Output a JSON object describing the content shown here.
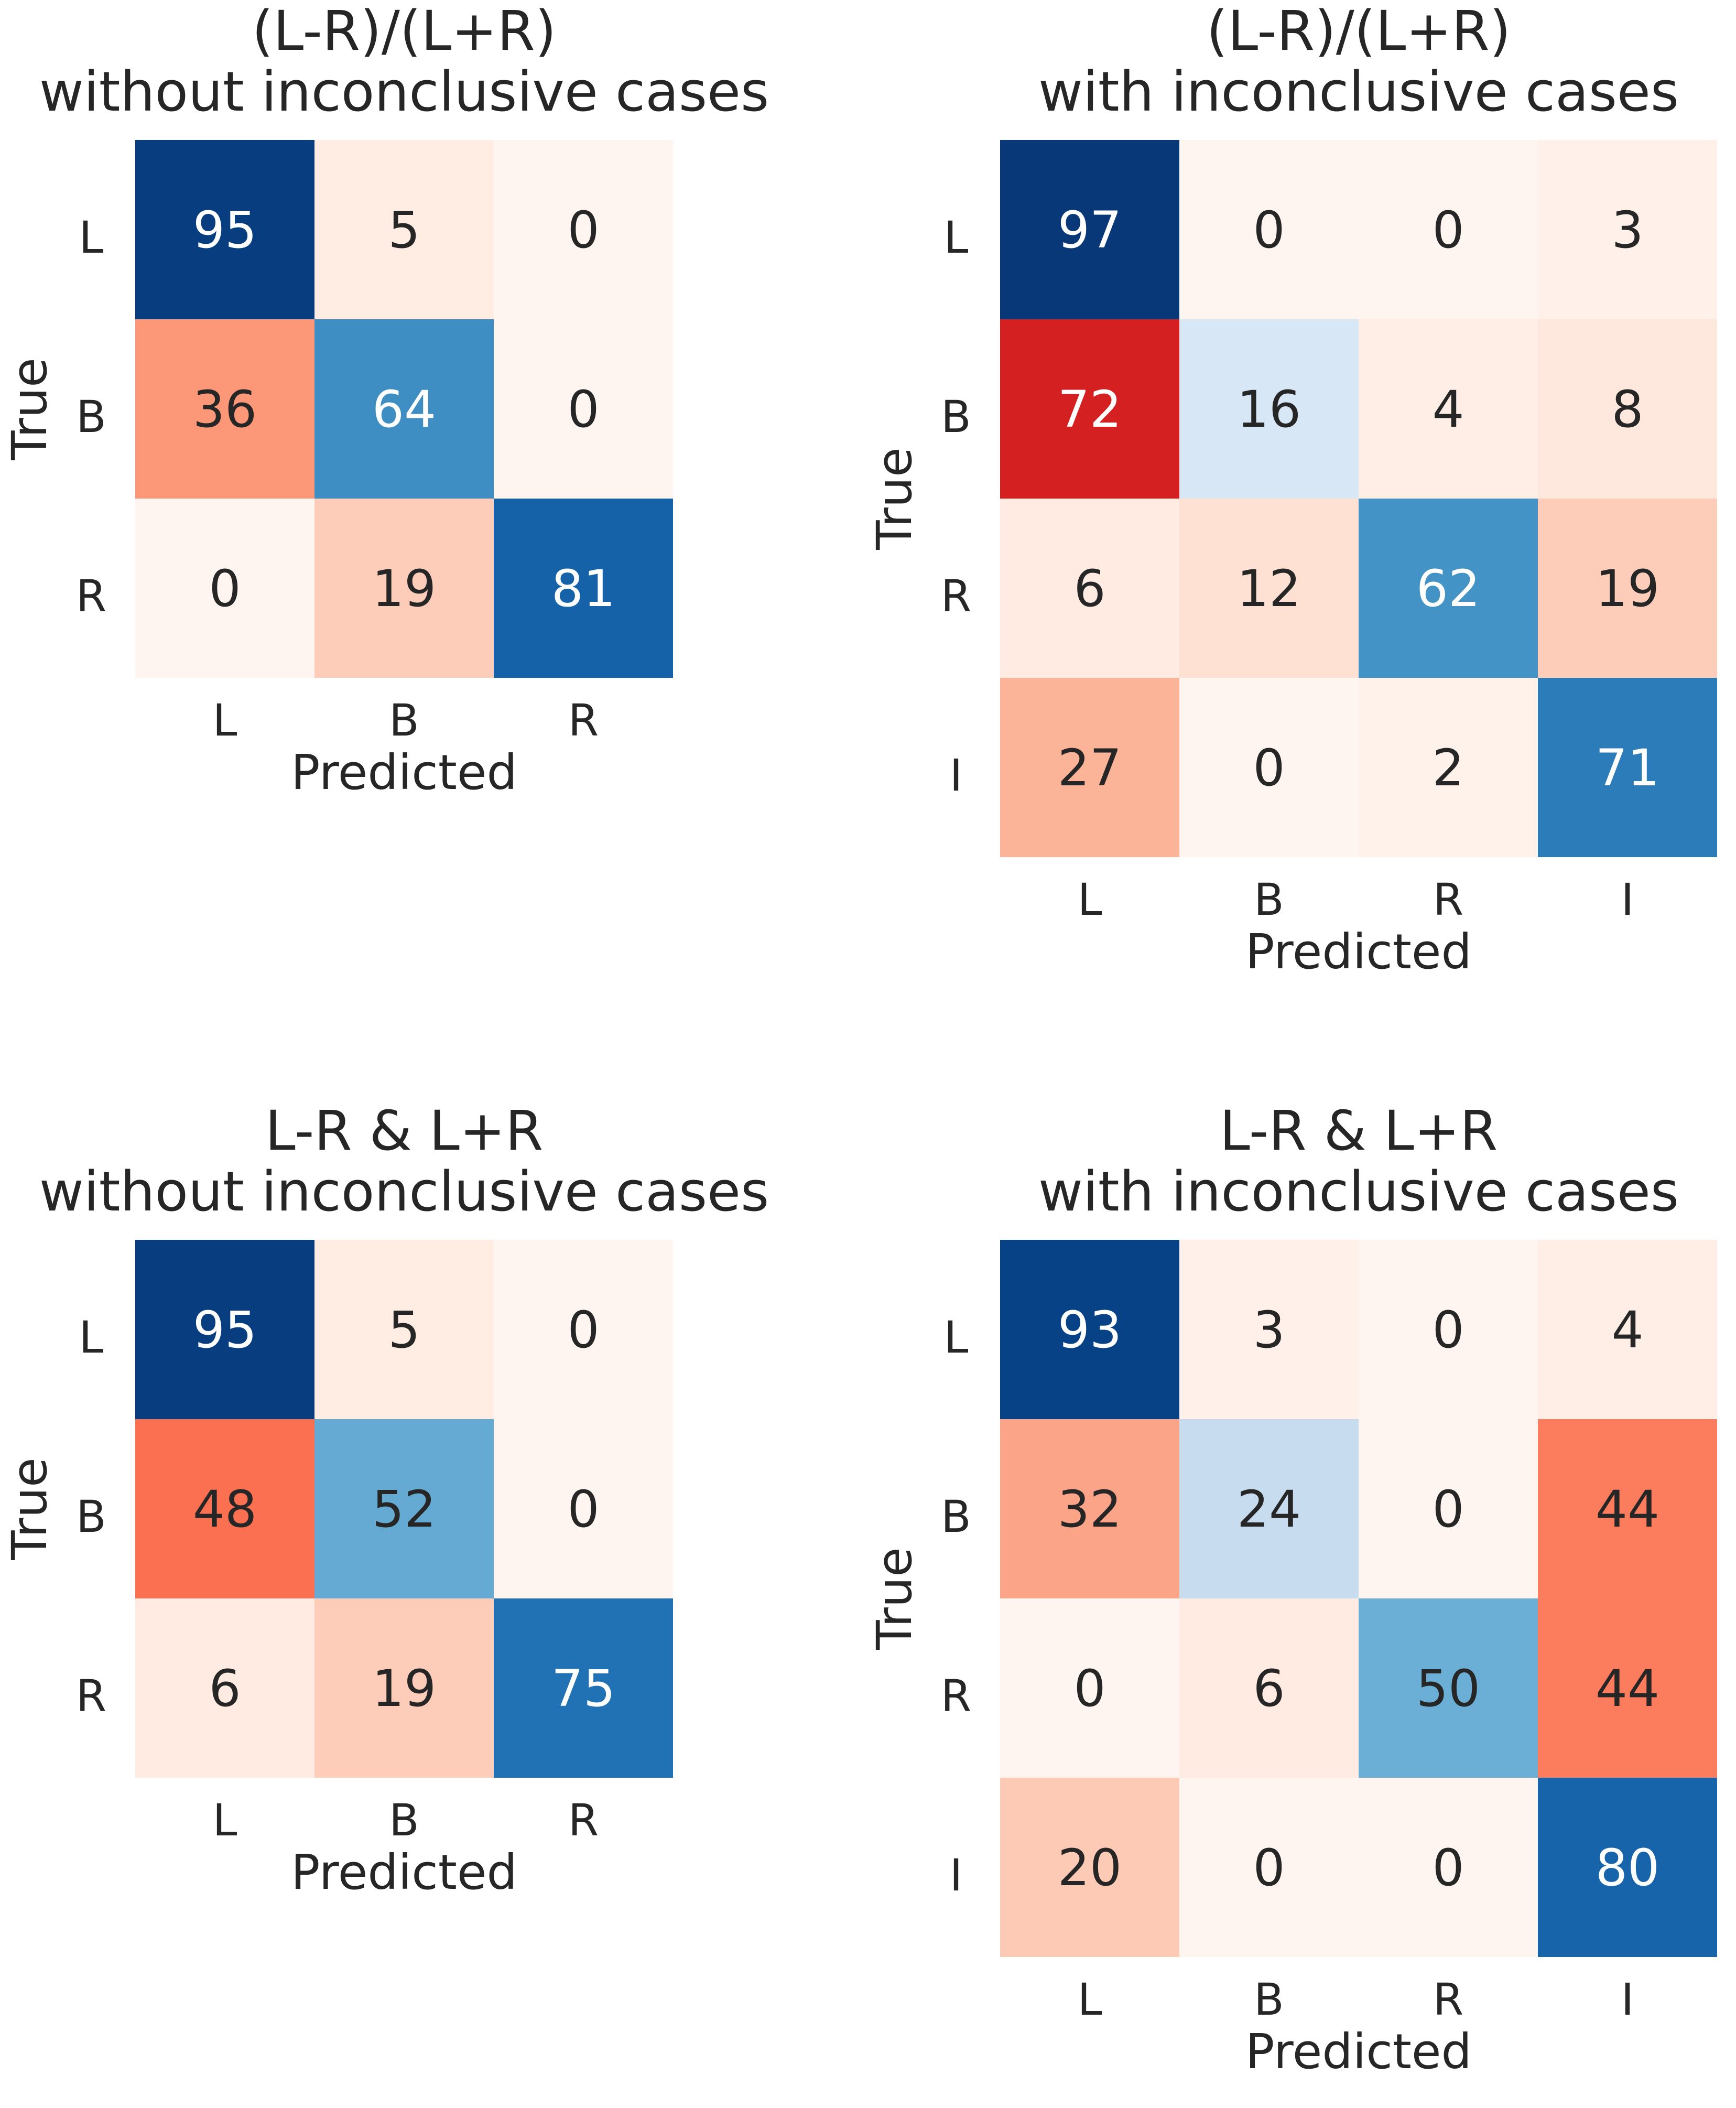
{
  "chart_data": [
    {
      "type": "heatmap",
      "title": [
        "(L-R)/(L+R)",
        "without inconclusive cases"
      ],
      "xlabel": "Predicted",
      "ylabel": "True",
      "x_categories": [
        "L",
        "B",
        "R"
      ],
      "y_categories": [
        "L",
        "B",
        "R"
      ],
      "values": [
        [
          95,
          5,
          0
        ],
        [
          36,
          64,
          0
        ],
        [
          0,
          19,
          81
        ]
      ],
      "diagonal_colormap": "Blues",
      "offdiagonal_colormap": "Reds",
      "colorbar": false
    },
    {
      "type": "heatmap",
      "title": [
        "(L-R)/(L+R)",
        "with inconclusive cases"
      ],
      "xlabel": "Predicted",
      "ylabel": "True",
      "x_categories": [
        "L",
        "B",
        "R",
        "I"
      ],
      "y_categories": [
        "L",
        "B",
        "R",
        "I"
      ],
      "values": [
        [
          97,
          0,
          0,
          3
        ],
        [
          72,
          16,
          4,
          8
        ],
        [
          6,
          12,
          62,
          19
        ],
        [
          27,
          0,
          2,
          71
        ]
      ],
      "diagonal_colormap": "Blues",
      "offdiagonal_colormap": "Reds",
      "colorbar": false
    },
    {
      "type": "heatmap",
      "title": [
        "L-R & L+R",
        "without inconclusive cases"
      ],
      "xlabel": "Predicted",
      "ylabel": "True",
      "x_categories": [
        "L",
        "B",
        "R"
      ],
      "y_categories": [
        "L",
        "B",
        "R"
      ],
      "values": [
        [
          95,
          5,
          0
        ],
        [
          48,
          52,
          0
        ],
        [
          6,
          19,
          75
        ]
      ],
      "diagonal_colormap": "Blues",
      "offdiagonal_colormap": "Reds",
      "colorbar": false
    },
    {
      "type": "heatmap",
      "title": [
        "L-R & L+R",
        "with inconclusive cases"
      ],
      "xlabel": "Predicted",
      "ylabel": "True",
      "x_categories": [
        "L",
        "B",
        "R",
        "I"
      ],
      "y_categories": [
        "L",
        "B",
        "R",
        "I"
      ],
      "values": [
        [
          93,
          3,
          0,
          4
        ],
        [
          32,
          24,
          0,
          44
        ],
        [
          0,
          6,
          50,
          44
        ],
        [
          20,
          0,
          0,
          80
        ]
      ],
      "diagonal_colormap": "Blues",
      "offdiagonal_colormap": "Reds",
      "colorbar": false
    }
  ]
}
